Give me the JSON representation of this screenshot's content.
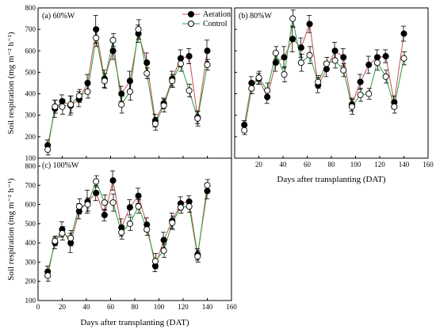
{
  "chart_data": [
    {
      "type": "line",
      "title": "(a) 60%W",
      "xlabel": "",
      "ylabel": "Soil respiration (mg m⁻² h⁻¹)",
      "xlim": [
        0,
        160
      ],
      "ylim": [
        100,
        800
      ],
      "x_ticks": [
        "0",
        "20",
        "40",
        "60",
        "80",
        "100",
        "120",
        "140",
        "160"
      ],
      "y_ticks": [
        "100",
        "200",
        "300",
        "400",
        "500",
        "600",
        "700",
        "800"
      ],
      "legend": "top-right",
      "x": [
        8,
        14,
        20,
        27,
        34,
        41,
        48,
        55,
        62,
        69,
        76,
        83,
        90,
        97,
        104,
        111,
        118,
        125,
        132,
        140
      ],
      "series": [
        {
          "name": "Aeration",
          "marker": "filled-circle",
          "color": "#c0504d",
          "values": [
            160,
            330,
            365,
            345,
            375,
            450,
            700,
            470,
            600,
            400,
            460,
            680,
            545,
            275,
            355,
            470,
            565,
            575,
            290,
            600
          ],
          "errors": [
            25,
            40,
            30,
            45,
            35,
            40,
            65,
            40,
            40,
            35,
            45,
            40,
            45,
            30,
            25,
            35,
            40,
            35,
            30,
            50
          ]
        },
        {
          "name": "Control",
          "marker": "open-circle",
          "color": "#2a9d3a",
          "values": [
            140,
            340,
            340,
            350,
            390,
            410,
            660,
            460,
            650,
            350,
            410,
            700,
            495,
            260,
            345,
            460,
            540,
            415,
            285,
            535
          ],
          "errors": [
            25,
            30,
            35,
            40,
            30,
            30,
            40,
            35,
            30,
            40,
            40,
            45,
            25,
            30,
            30,
            30,
            35,
            30,
            35,
            25
          ]
        }
      ]
    },
    {
      "type": "line",
      "title": "(b) 80%W",
      "xlabel": "Days after transplanting (DAT)",
      "ylabel": "",
      "xlim": [
        0,
        160
      ],
      "ylim": [
        100,
        800
      ],
      "x_ticks": [
        "20",
        "40",
        "60",
        "80",
        "100",
        "120",
        "140",
        "160"
      ],
      "legend": "",
      "x": [
        8,
        14,
        20,
        27,
        34,
        41,
        48,
        55,
        62,
        69,
        76,
        83,
        90,
        97,
        104,
        111,
        118,
        125,
        132,
        140
      ],
      "series": [
        {
          "name": "Aeration",
          "marker": "filled-circle",
          "color": "#c0504d",
          "values": [
            255,
            450,
            470,
            385,
            545,
            570,
            655,
            615,
            725,
            440,
            515,
            600,
            570,
            350,
            455,
            535,
            570,
            575,
            360,
            680
          ],
          "errors": [
            20,
            30,
            25,
            30,
            40,
            50,
            60,
            45,
            40,
            35,
            35,
            40,
            40,
            30,
            35,
            40,
            35,
            30,
            30,
            35
          ]
        },
        {
          "name": "Control",
          "marker": "open-circle",
          "color": "#2a9d3a",
          "values": [
            230,
            425,
            475,
            415,
            590,
            490,
            750,
            545,
            580,
            455,
            540,
            555,
            510,
            340,
            395,
            400,
            545,
            480,
            340,
            565
          ],
          "errors": [
            20,
            25,
            30,
            35,
            30,
            35,
            40,
            40,
            40,
            30,
            30,
            35,
            30,
            35,
            30,
            25,
            35,
            30,
            30,
            30
          ]
        }
      ]
    },
    {
      "type": "line",
      "title": "(c) 100%W",
      "xlabel": "Days after transplanting (DAT)",
      "ylabel": "Soil respiration (mg m⁻² h⁻¹)",
      "xlim": [
        0,
        160
      ],
      "ylim": [
        100,
        800
      ],
      "x_ticks": [
        "0",
        "20",
        "40",
        "60",
        "80",
        "100",
        "120",
        "140",
        "160"
      ],
      "y_ticks": [
        "100",
        "200",
        "300",
        "400",
        "500",
        "600",
        "700",
        "800"
      ],
      "legend": "",
      "x": [
        8,
        14,
        20,
        27,
        34,
        41,
        48,
        55,
        62,
        69,
        76,
        83,
        90,
        97,
        104,
        111,
        118,
        125,
        132,
        140
      ],
      "series": [
        {
          "name": "Aeration",
          "marker": "filled-circle",
          "color": "#c0504d",
          "values": [
            250,
            400,
            470,
            400,
            565,
            615,
            660,
            545,
            725,
            480,
            585,
            645,
            495,
            280,
            415,
            515,
            605,
            615,
            340,
            670
          ],
          "errors": [
            30,
            30,
            40,
            50,
            40,
            60,
            40,
            30,
            50,
            45,
            40,
            40,
            35,
            30,
            40,
            40,
            35,
            30,
            30,
            40
          ]
        },
        {
          "name": "Control",
          "marker": "open-circle",
          "color": "#2a9d3a",
          "values": [
            230,
            410,
            450,
            425,
            590,
            600,
            720,
            610,
            610,
            455,
            500,
            590,
            470,
            305,
            360,
            505,
            585,
            590,
            330,
            700
          ],
          "errors": [
            30,
            25,
            35,
            40,
            40,
            35,
            30,
            40,
            45,
            35,
            35,
            35,
            30,
            40,
            35,
            35,
            30,
            30,
            30,
            30
          ]
        }
      ]
    }
  ]
}
